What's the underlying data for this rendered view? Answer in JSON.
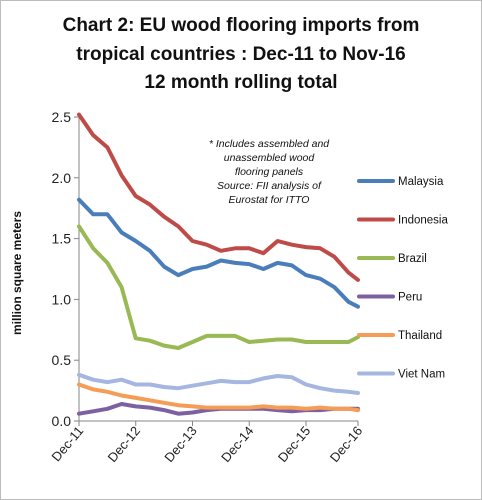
{
  "chart_data": {
    "type": "line",
    "title_lines": [
      "Chart 2: EU wood flooring imports from",
      "tropical countries : Dec-11 to Nov-16",
      "12 month rolling total"
    ],
    "ylabel": "million square meters",
    "ylim": [
      0,
      2.5
    ],
    "yticks": [
      "0.0",
      "0.5",
      "1.0",
      "1.5",
      "2.0",
      "2.5"
    ],
    "xticks": [
      "Dec-11",
      "Dec-12",
      "Dec-13",
      "Dec-14",
      "Dec-15",
      "Dec-16"
    ],
    "grid": false,
    "legend_position": "right",
    "note_lines": [
      "* Includes assembled and",
      "unassembled wood",
      "flooring panels",
      "Source: FII analysis of",
      "Eurostat for ITTO"
    ],
    "x_month_offsets": [
      0,
      3,
      6,
      9,
      12,
      15,
      18,
      21,
      24,
      27,
      30,
      33,
      36,
      39,
      42,
      45,
      48,
      51,
      54,
      57,
      59
    ],
    "series": [
      {
        "name": "Malaysia",
        "color": "#4a7ebb",
        "values": [
          1.82,
          1.7,
          1.7,
          1.55,
          1.48,
          1.4,
          1.27,
          1.2,
          1.25,
          1.27,
          1.32,
          1.3,
          1.29,
          1.25,
          1.3,
          1.28,
          1.2,
          1.17,
          1.1,
          0.98,
          0.94
        ]
      },
      {
        "name": "Indonesia",
        "color": "#be4b48",
        "values": [
          2.52,
          2.35,
          2.25,
          2.02,
          1.85,
          1.78,
          1.68,
          1.6,
          1.48,
          1.45,
          1.4,
          1.42,
          1.42,
          1.38,
          1.48,
          1.45,
          1.43,
          1.42,
          1.35,
          1.22,
          1.16
        ]
      },
      {
        "name": "Brazil",
        "color": "#98b954",
        "values": [
          1.6,
          1.42,
          1.3,
          1.1,
          0.68,
          0.66,
          0.62,
          0.6,
          0.65,
          0.7,
          0.7,
          0.7,
          0.65,
          0.66,
          0.67,
          0.67,
          0.65,
          0.65,
          0.65,
          0.65,
          0.69
        ]
      },
      {
        "name": "Peru",
        "color": "#7d60a0",
        "values": [
          0.06,
          0.08,
          0.1,
          0.14,
          0.12,
          0.11,
          0.09,
          0.06,
          0.07,
          0.09,
          0.1,
          0.1,
          0.1,
          0.1,
          0.09,
          0.08,
          0.09,
          0.09,
          0.1,
          0.1,
          0.1
        ]
      },
      {
        "name": "Thailand",
        "color": "#f59d56",
        "values": [
          0.3,
          0.26,
          0.24,
          0.21,
          0.19,
          0.17,
          0.15,
          0.13,
          0.12,
          0.11,
          0.11,
          0.11,
          0.11,
          0.12,
          0.11,
          0.11,
          0.1,
          0.11,
          0.1,
          0.1,
          0.09
        ]
      },
      {
        "name": "Viet Nam",
        "color": "#a5b6e0",
        "values": [
          0.38,
          0.34,
          0.32,
          0.34,
          0.3,
          0.3,
          0.28,
          0.27,
          0.29,
          0.31,
          0.33,
          0.32,
          0.32,
          0.35,
          0.37,
          0.36,
          0.3,
          0.27,
          0.25,
          0.24,
          0.23
        ]
      }
    ]
  }
}
